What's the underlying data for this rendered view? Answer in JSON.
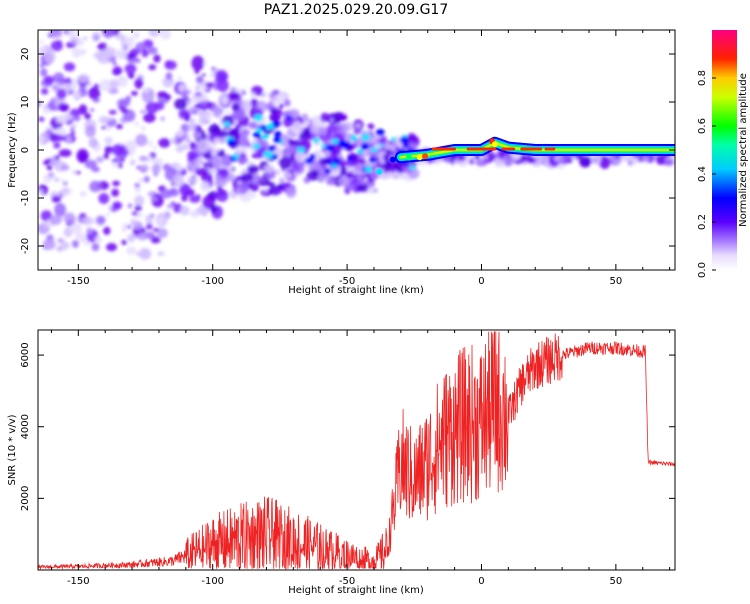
{
  "chart_data": [
    {
      "type": "heatmap",
      "title": "PAZ1.2025.029.20.09.G17",
      "xlabel": "Height of straight line (km)",
      "ylabel": "Frequency (Hz)",
      "xlim": [
        -165,
        72
      ],
      "ylim": [
        -25,
        25
      ],
      "x_ticks": [
        -150,
        -100,
        -50,
        0,
        50
      ],
      "x_tick_labels": [
        "-150",
        "-100",
        "-50",
        "0",
        "50"
      ],
      "y_ticks": [
        -20,
        -10,
        0,
        10,
        20
      ],
      "y_tick_labels": [
        "-20",
        "-10",
        "0",
        "10",
        "20"
      ],
      "colorbar": {
        "label": "Normalized spectral amplitude",
        "range": [
          0,
          1
        ],
        "ticks": [
          0,
          0.2,
          0.4,
          0.6,
          0.8
        ],
        "tick_labels": [
          "0.0",
          "0.2",
          "0.4",
          "0.6",
          "0.8"
        ],
        "colormap": [
          "#ffffff",
          "#c9b3ff",
          "#7a00ff",
          "#0000ff",
          "#00ffff",
          "#00ff00",
          "#ffff00",
          "#ff0000",
          "#ff00ff"
        ]
      },
      "ridge": {
        "description_values": "dominant frequency near 0 Hz above about -30 km",
        "x": [
          -30,
          -20,
          -10,
          0,
          5,
          10,
          20,
          30,
          40,
          50,
          60,
          72
        ],
        "y": [
          -1.5,
          -1,
          0,
          0,
          1.5,
          0.5,
          0,
          0,
          0,
          0,
          0,
          0
        ]
      }
    },
    {
      "type": "line",
      "title": "",
      "xlabel": "Height of straight line (km)",
      "ylabel": "SNR (10 * v/v)",
      "xlim": [
        -165,
        72
      ],
      "ylim": [
        0,
        6700
      ],
      "x_ticks": [
        -150,
        -100,
        -50,
        0,
        50
      ],
      "x_tick_labels": [
        "-150",
        "-100",
        "-50",
        "0",
        "50"
      ],
      "y_ticks": [
        2000,
        4000,
        6000
      ],
      "y_tick_labels": [
        "2000",
        "4000",
        "6000"
      ],
      "color": "#ee2222",
      "series": [
        {
          "x": [
            -165,
            -150,
            -130,
            -115,
            -110,
            -100,
            -90,
            -80,
            -70,
            -60,
            -50,
            -40,
            -35,
            -30,
            -25,
            -20,
            -15,
            -10,
            -5,
            0,
            5,
            10,
            15,
            20,
            30,
            40,
            50,
            60,
            61,
            62,
            63,
            72
          ],
          "y": [
            80,
            100,
            150,
            250,
            400,
            700,
            850,
            950,
            800,
            600,
            400,
            250,
            600,
            3000,
            2500,
            3000,
            3600,
            3900,
            4100,
            4100,
            4700,
            4300,
            5200,
            5700,
            6000,
            6200,
            6200,
            6100,
            6100,
            3000,
            3000,
            2950
          ]
        }
      ]
    }
  ]
}
